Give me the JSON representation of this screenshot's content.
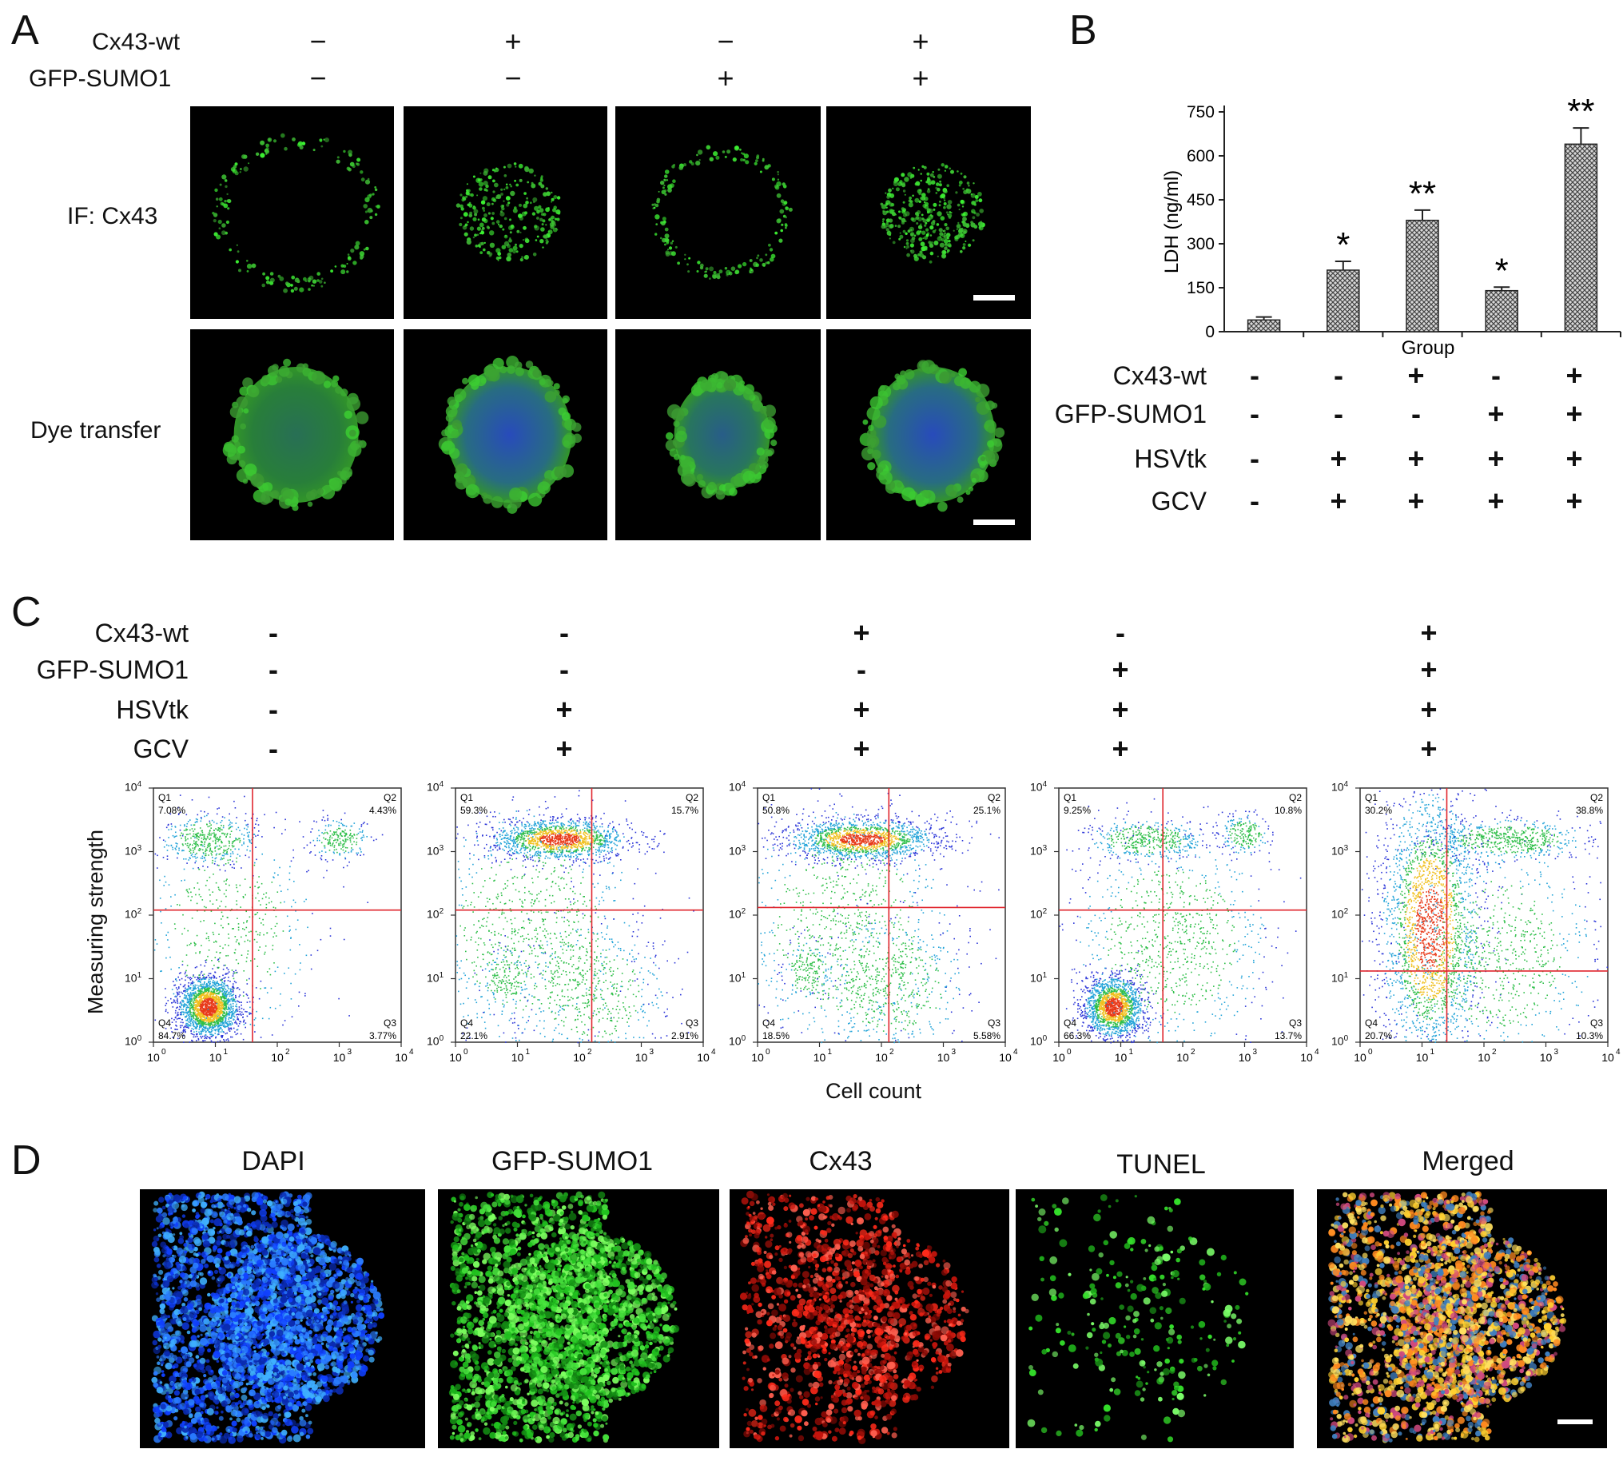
{
  "panels": {
    "a": "A",
    "b": "B",
    "c": "C",
    "d": "D"
  },
  "panel_a": {
    "rows": [
      "Cx43-wt",
      "GFP-SUMO1"
    ],
    "signs": [
      [
        "−",
        "+",
        "−",
        "+"
      ],
      [
        "−",
        "−",
        "+",
        "+"
      ]
    ],
    "row_labels": [
      "IF: Cx43",
      "Dye transfer"
    ]
  },
  "panel_b": {
    "condition_rows": [
      "Cx43-wt",
      "GFP-SUMO1",
      "HSVtk",
      "GCV"
    ],
    "signs": [
      [
        "-",
        "-",
        "+",
        "-",
        "+"
      ],
      [
        "-",
        "-",
        "-",
        "+",
        "+"
      ],
      [
        "-",
        "+",
        "+",
        "+",
        "+"
      ],
      [
        "-",
        "+",
        "+",
        "+",
        "+"
      ]
    ]
  },
  "panel_c": {
    "condition_rows": [
      "Cx43-wt",
      "GFP-SUMO1",
      "HSVtk",
      "GCV"
    ],
    "signs": [
      [
        "-",
        "-",
        "+",
        "-",
        "+"
      ],
      [
        "-",
        "-",
        "-",
        "+",
        "+"
      ],
      [
        "-",
        "+",
        "+",
        "+",
        "+"
      ],
      [
        "-",
        "+",
        "+",
        "+",
        "+"
      ]
    ],
    "ylabel": "Measuring strength",
    "xlabel": "Cell count",
    "quadrant_names": [
      "Q1",
      "Q2",
      "Q3",
      "Q4"
    ],
    "plots": [
      {
        "q1": "7.08%",
        "q2": "4.43%",
        "q3": "3.77%",
        "q4": "84.7%"
      },
      {
        "q1": "59.3%",
        "q2": "15.7%",
        "q3": "2.91%",
        "q4": "22.1%"
      },
      {
        "q1": "50.8%",
        "q2": "25.1%",
        "q3": "5.58%",
        "q4": "18.5%"
      },
      {
        "q1": "9.25%",
        "q2": "10.8%",
        "q3": "13.7%",
        "q4": "66.3%"
      },
      {
        "q1": "30.2%",
        "q2": "38.8%",
        "q3": "10.3%",
        "q4": "20.7%"
      }
    ]
  },
  "panel_d": {
    "titles": [
      "DAPI",
      "GFP-SUMO1",
      "Cx43",
      "TUNEL",
      "Merged"
    ]
  },
  "colors": {
    "dapi": "#1e5cff",
    "gfp": "#2bd42b",
    "cx43": "#ff2a1a",
    "gate": "#e0262e"
  },
  "chart_data": {
    "type": "bar",
    "ylabel": "LDH (ng/ml)",
    "xlabel": "Group",
    "ylim": [
      0,
      750
    ],
    "yticks": [
      "0",
      "150",
      "300",
      "450",
      "600",
      "750"
    ],
    "values": [
      40,
      210,
      380,
      140,
      640
    ],
    "errors": [
      10,
      30,
      35,
      12,
      55
    ],
    "significance": [
      "",
      "*",
      "**",
      "*",
      "**"
    ]
  }
}
